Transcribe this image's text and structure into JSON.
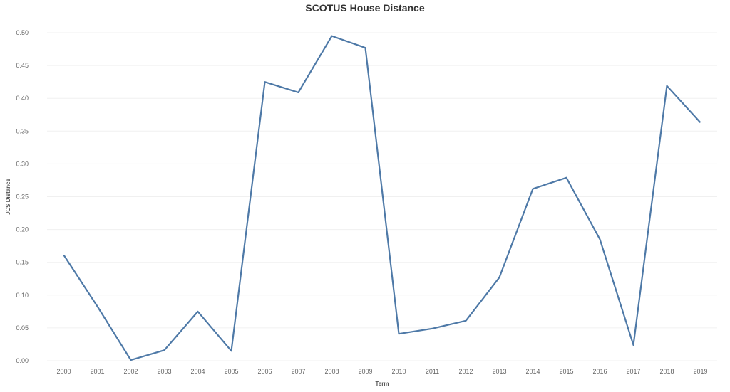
{
  "chart_data": {
    "type": "line",
    "title": "SCOTUS House Distance",
    "xlabel": "Term",
    "ylabel": "JCS Distance",
    "x": [
      "2000",
      "2001",
      "2002",
      "2003",
      "2004",
      "2005",
      "2006",
      "2007",
      "2008",
      "2009",
      "2010",
      "2011",
      "2012",
      "2013",
      "2014",
      "2015",
      "2016",
      "2017",
      "2018",
      "2019"
    ],
    "series": [
      {
        "values": [
          0.161,
          0.083,
          0.001,
          0.016,
          0.075,
          0.015,
          0.425,
          0.409,
          0.495,
          0.477,
          0.041,
          0.049,
          0.061,
          0.127,
          0.262,
          0.279,
          0.185,
          0.024,
          0.419,
          0.363
        ]
      }
    ],
    "yticks": [
      "0.00",
      "0.05",
      "0.10",
      "0.15",
      "0.20",
      "0.25",
      "0.30",
      "0.35",
      "0.40",
      "0.45",
      "0.50"
    ],
    "ylim": [
      0,
      0.5
    ],
    "grid": true,
    "line_color": "#4e79a7"
  }
}
